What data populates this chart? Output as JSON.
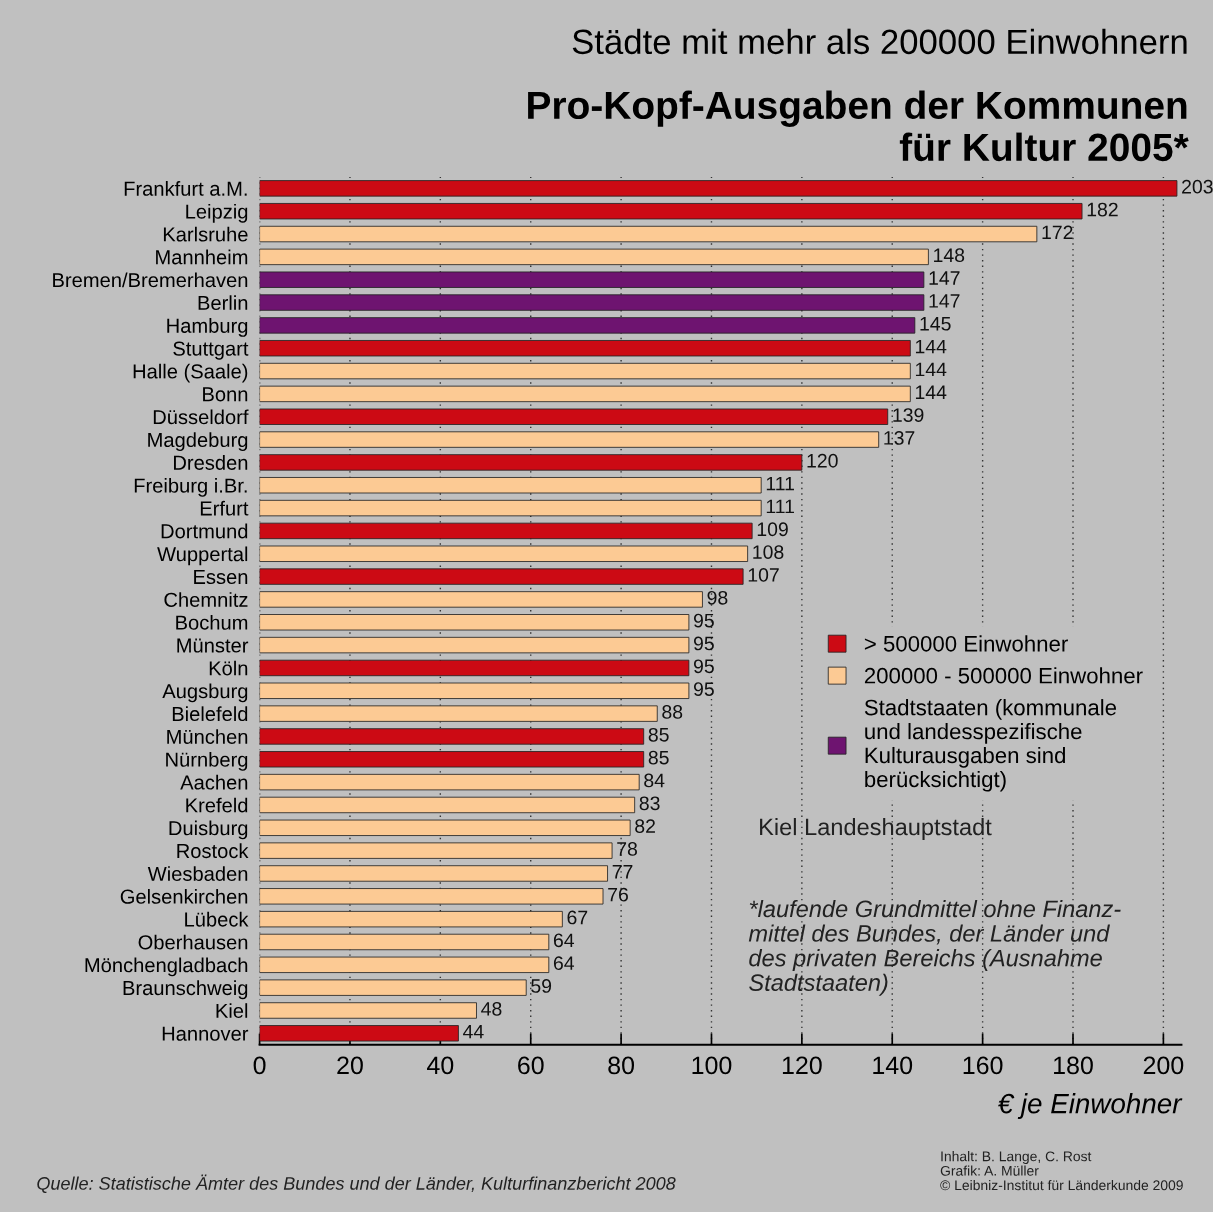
{
  "chart_data": {
    "type": "bar",
    "orientation": "horizontal",
    "subtitle": "Städte mit mehr als 200000 Einwohnern",
    "title": "Pro-Kopf-Ausgaben der Kommunen\nfür Kultur 2005*",
    "xlabel": "€ je Einwohner",
    "categories": [
      "Frankfurt a.M.",
      "Leipzig",
      "Karlsruhe",
      "Mannheim",
      "Bremen/Bremerhaven",
      "Berlin",
      "Hamburg",
      "Stuttgart",
      "Halle (Saale)",
      "Bonn",
      "Düsseldorf",
      "Magdeburg",
      "Dresden",
      "Freiburg i.Br.",
      "Erfurt",
      "Dortmund",
      "Wuppertal",
      "Essen",
      "Chemnitz",
      "Bochum",
      "Münster",
      "Köln",
      "Augsburg",
      "Bielefeld",
      "München",
      "Nürnberg",
      "Aachen",
      "Krefeld",
      "Duisburg",
      "Rostock",
      "Wiesbaden",
      "Gelsenkirchen",
      "Lübeck",
      "Oberhausen",
      "Mönchengladbach",
      "Braunschweig",
      "Kiel",
      "Hannover"
    ],
    "series": [
      {
        "name": "> 500000 Einwohner",
        "color": "#cc0a14",
        "values": [
          203,
          182,
          null,
          null,
          null,
          null,
          null,
          144,
          null,
          null,
          139,
          null,
          120,
          null,
          null,
          109,
          null,
          107,
          null,
          null,
          null,
          95,
          null,
          null,
          85,
          85,
          null,
          null,
          null,
          null,
          null,
          null,
          null,
          null,
          null,
          null,
          null,
          44
        ]
      },
      {
        "name": "200000 - 500000 Einwohner",
        "color": "#fcca94",
        "values": [
          null,
          null,
          172,
          148,
          null,
          null,
          null,
          null,
          144,
          144,
          null,
          137,
          null,
          111,
          111,
          null,
          108,
          null,
          98,
          95,
          95,
          null,
          95,
          88,
          null,
          null,
          84,
          83,
          82,
          78,
          77,
          76,
          67,
          64,
          64,
          59,
          48,
          null
        ]
      },
      {
        "name": "Stadtstaaten (kommunale\nund landesspezifische\nKulturausgaben sind\nberücksichtigt)",
        "color": "#6e1470",
        "values": [
          null,
          null,
          null,
          null,
          147,
          147,
          145,
          null,
          null,
          null,
          null,
          null,
          null,
          null,
          null,
          null,
          null,
          null,
          null,
          null,
          null,
          null,
          null,
          null,
          null,
          null,
          null,
          null,
          null,
          null,
          null,
          null,
          null,
          null,
          null,
          null,
          null,
          null
        ]
      }
    ],
    "xlim": [
      0,
      204
    ],
    "xticks": [
      0,
      20,
      40,
      60,
      80,
      100,
      120,
      140,
      160,
      180,
      200
    ],
    "grid": "x",
    "legend": "right",
    "data_labels": true,
    "annotations": [
      "Kiel Landeshauptstadt",
      "*laufende Grundmittel ohne Finanz-\nmittel des Bundes, der Länder und\ndes privaten Bereichs (Ausnahme\nStadtstaaten)",
      "Quelle: Statistische Ämter des Bundes und der Länder, Kulturfinanzbericht 2008",
      "Inhalt: B. Lange, C. Rost\nGrafik: A. Müller\n© Leibniz-Institut für Länderkunde 2009"
    ]
  }
}
